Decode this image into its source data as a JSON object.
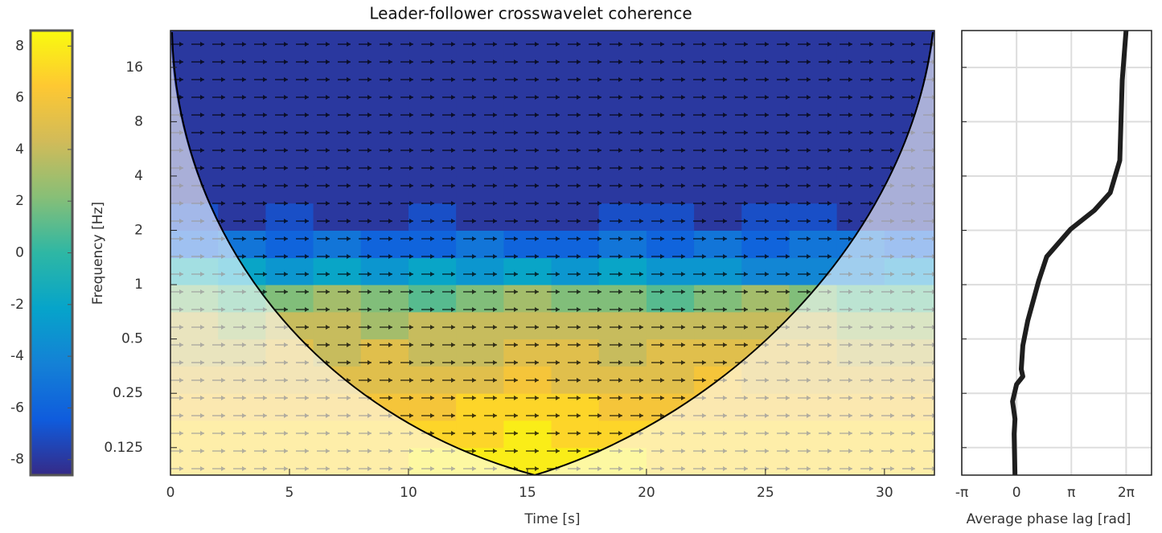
{
  "chart_data": [
    {
      "type": "colorbar",
      "ylim": [
        -8.6,
        8.6
      ],
      "yticks": [
        -8,
        -6,
        -4,
        -2,
        0,
        2,
        4,
        6,
        8
      ],
      "colormap": [
        "#352a87",
        "#0f5cdd",
        "#1481d6",
        "#06a4ca",
        "#2eb7a4",
        "#87bf77",
        "#d1bb59",
        "#fec832",
        "#f9fb0e"
      ]
    },
    {
      "type": "heatmap",
      "title": "Leader-follower crosswavelet coherence",
      "xlabel": "Time [s]",
      "ylabel": "Frequency [Hz]",
      "xlim": [
        0,
        32.1
      ],
      "xticks": [
        0,
        5,
        10,
        15,
        20,
        25,
        30
      ],
      "ylim": [
        0.088,
        25.6
      ],
      "yticks": [
        0.125,
        0.25,
        0.5,
        1,
        2,
        4,
        8,
        16
      ],
      "log_y": true,
      "x_edges": [
        0,
        2,
        4,
        6,
        8,
        10,
        12,
        14,
        16,
        18,
        20,
        22,
        24,
        26,
        28,
        30,
        32.1
      ],
      "y_edges": [
        0.088,
        0.125,
        0.177,
        0.25,
        0.354,
        0.5,
        0.707,
        1,
        1.41,
        2,
        2.83,
        4,
        8,
        16,
        25.6
      ],
      "z": [
        [
          7,
          7,
          7,
          7,
          7,
          8,
          8,
          8,
          8,
          8,
          7,
          7,
          7,
          7,
          7,
          7
        ],
        [
          7,
          7,
          7,
          7,
          7,
          7,
          7,
          8,
          7,
          7,
          7,
          7,
          7,
          7,
          7,
          7
        ],
        [
          6,
          6,
          6,
          6,
          6,
          6,
          7,
          7,
          7,
          6,
          6,
          6,
          6,
          6,
          6,
          6
        ],
        [
          5,
          5,
          5,
          5,
          5,
          5,
          5,
          6,
          5,
          5,
          5,
          6,
          5,
          5,
          5,
          5
        ],
        [
          4,
          4,
          5,
          4,
          5,
          4,
          4,
          5,
          5,
          4,
          5,
          5,
          5,
          5,
          4,
          4
        ],
        [
          4,
          3,
          4,
          4,
          3,
          4,
          4,
          4,
          4,
          4,
          4,
          4,
          4,
          4,
          3,
          3
        ],
        [
          2,
          1,
          2,
          3,
          2,
          1,
          2,
          3,
          2,
          2,
          1,
          2,
          3,
          2,
          1,
          1
        ],
        [
          -1,
          -2,
          -3,
          -2,
          -3,
          -2,
          -3,
          -2,
          -3,
          -2,
          -3,
          -3,
          -4,
          -4,
          -4,
          -3
        ],
        [
          -6,
          -5,
          -6,
          -5,
          -6,
          -6,
          -5,
          -6,
          -6,
          -5,
          -6,
          -5,
          -6,
          -5,
          -5,
          -6
        ],
        [
          -7,
          -8,
          -7,
          -8,
          -8,
          -7,
          -8,
          -8,
          -8,
          -7,
          -7,
          -8,
          -7,
          -7,
          -8,
          -8
        ],
        [
          -8,
          -8,
          -8,
          -8,
          -8,
          -8,
          -8,
          -8,
          -8,
          -8,
          -8,
          -8,
          -8,
          -8,
          -8,
          -8
        ],
        [
          -8,
          -8,
          -8,
          -8,
          -8,
          -8,
          -8,
          -8,
          -8,
          -8,
          -8,
          -8,
          -8,
          -8,
          -8,
          -8
        ],
        [
          -8,
          -8,
          -8,
          -8,
          -8,
          -8,
          -8,
          -8,
          -8,
          -8,
          -8,
          -8,
          -8,
          -8,
          -8,
          -8
        ],
        [
          -8,
          -8,
          -8,
          -8,
          -8,
          -8,
          -8,
          -8,
          -8,
          -8,
          -8,
          -8,
          -8,
          -8,
          -8,
          -8
        ]
      ]
    },
    {
      "type": "line",
      "xlabel": "Average phase lag [rad]",
      "xlim": [
        -3.1416,
        7.74
      ],
      "xticks": [
        {
          "value": -3.1416,
          "label": "-π"
        },
        0,
        {
          "value": 3.1416,
          "label": "π"
        },
        {
          "value": 6.2832,
          "label": "2π"
        }
      ],
      "ylim": [
        0.088,
        25.6
      ],
      "yticks": [
        0.125,
        0.25,
        0.5,
        1,
        2,
        4,
        8,
        16
      ],
      "log_y": true,
      "grid": true,
      "color": "#1e1e1e",
      "y": [
        25.6,
        13.6,
        4.88,
        3.23,
        2.58,
        2.03,
        1.43,
        1.05,
        0.63,
        0.46,
        0.34,
        0.31,
        0.28,
        0.225,
        0.18,
        0.149,
        0.088
      ],
      "values": [
        6.28,
        6.06,
        5.92,
        5.37,
        4.46,
        3.1,
        1.73,
        1.27,
        0.64,
        0.36,
        0.27,
        0.36,
        0,
        -0.23,
        -0.09,
        -0.14,
        -0.09
      ]
    }
  ]
}
